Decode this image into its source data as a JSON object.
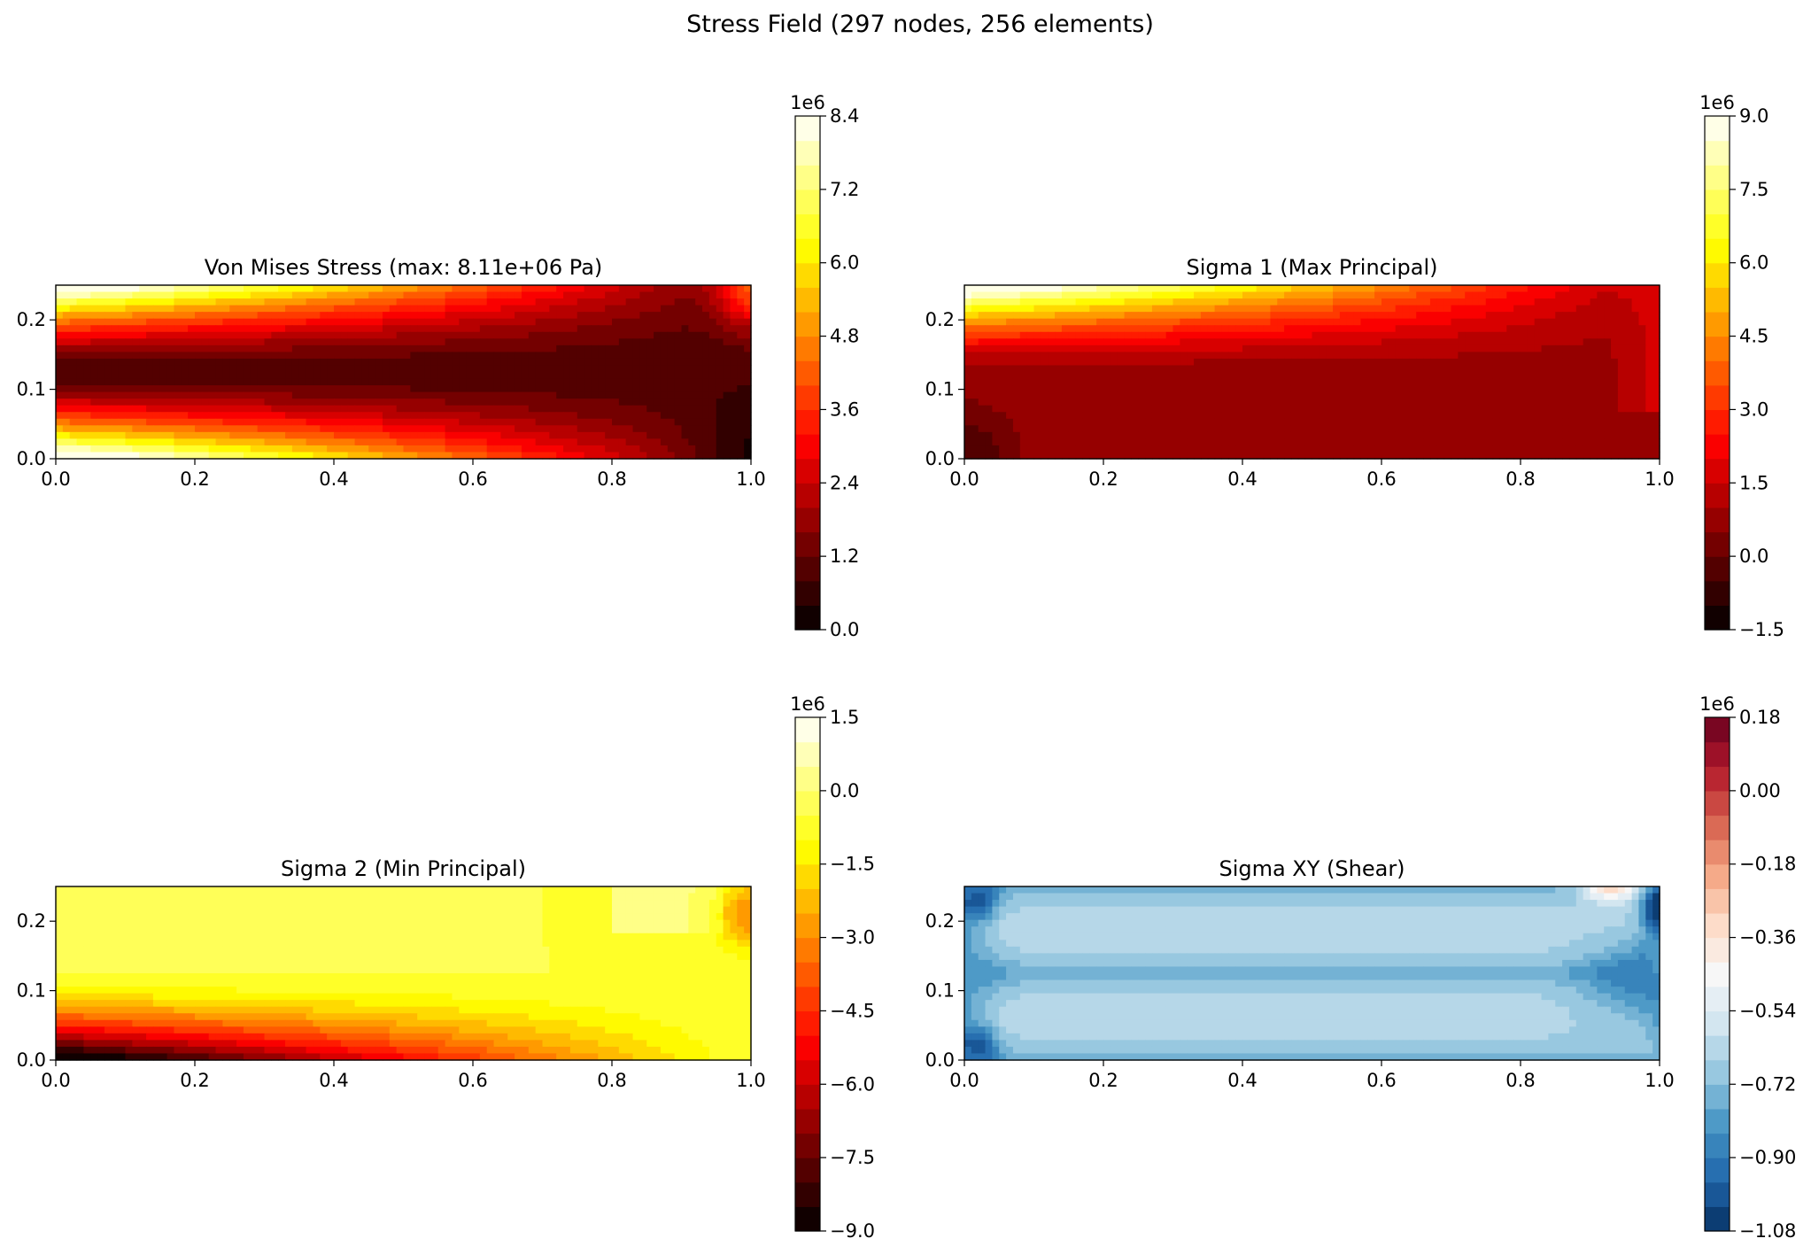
{
  "figure": {
    "suptitle": "Stress Field (297 nodes, 256 elements)"
  },
  "chart_data": [
    {
      "type": "heatmap",
      "title": "Von Mises Stress (max: 8.11e+06 Pa)",
      "field": "von_mises",
      "cmap": "hot",
      "xlim": [
        0.0,
        1.0
      ],
      "ylim": [
        0.0,
        0.25
      ],
      "xticks": [
        "0.0",
        "0.2",
        "0.4",
        "0.6",
        "0.8",
        "1.0"
      ],
      "yticks": [
        "0.0",
        "0.1",
        "0.2"
      ],
      "colorbar": {
        "range": [
          0.0,
          8.4
        ],
        "multiplier": "1e6",
        "levels": 21,
        "ticks": [
          "0.0",
          "1.2",
          "2.4",
          "3.6",
          "4.8",
          "6.0",
          "7.2",
          "8.4"
        ]
      },
      "max_value_pa": 8110000
    },
    {
      "type": "heatmap",
      "title": "Sigma 1 (Max Principal)",
      "field": "sigma1",
      "cmap": "hot",
      "xlim": [
        0.0,
        1.0
      ],
      "ylim": [
        0.0,
        0.25
      ],
      "xticks": [
        "0.0",
        "0.2",
        "0.4",
        "0.6",
        "0.8",
        "1.0"
      ],
      "yticks": [
        "0.0",
        "0.1",
        "0.2"
      ],
      "colorbar": {
        "range": [
          -1.5,
          9.0
        ],
        "multiplier": "1e6",
        "levels": 21,
        "ticks": [
          "−1.5",
          "0.0",
          "1.5",
          "3.0",
          "4.5",
          "6.0",
          "7.5",
          "9.0"
        ]
      }
    },
    {
      "type": "heatmap",
      "title": "Sigma 2 (Min Principal)",
      "field": "sigma2",
      "cmap": "hot",
      "xlim": [
        0.0,
        1.0
      ],
      "ylim": [
        0.0,
        0.25
      ],
      "xticks": [
        "0.0",
        "0.2",
        "0.4",
        "0.6",
        "0.8",
        "1.0"
      ],
      "yticks": [
        "0.0",
        "0.1",
        "0.2"
      ],
      "colorbar": {
        "range": [
          -9.0,
          1.5
        ],
        "multiplier": "1e6",
        "levels": 21,
        "ticks": [
          "−9.0",
          "−7.5",
          "−6.0",
          "−4.5",
          "−3.0",
          "−1.5",
          "0.0",
          "1.5"
        ]
      }
    },
    {
      "type": "heatmap",
      "title": "Sigma XY (Shear)",
      "field": "sigma_xy",
      "cmap": "RdBu_r",
      "xlim": [
        0.0,
        1.0
      ],
      "ylim": [
        0.0,
        0.25
      ],
      "xticks": [
        "0.0",
        "0.2",
        "0.4",
        "0.6",
        "0.8",
        "1.0"
      ],
      "yticks": [
        "0.0",
        "0.1",
        "0.2"
      ],
      "colorbar": {
        "range": [
          -1.08,
          0.18
        ],
        "multiplier": "1e6",
        "levels": 21,
        "ticks": [
          "−1.08",
          "−0.90",
          "−0.72",
          "−0.54",
          "−0.36",
          "−0.18",
          "0.00",
          "0.18"
        ]
      }
    }
  ]
}
